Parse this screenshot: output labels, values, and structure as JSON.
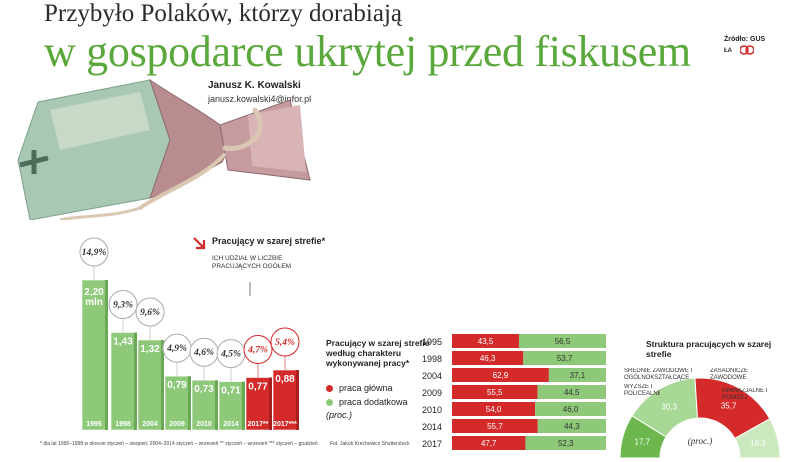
{
  "headline": {
    "line1": "Przybyło Polaków, którzy dorabiają",
    "line2": "w gospodarce ukrytej przed fiskusem"
  },
  "source": "Źródło: GUS",
  "credit": "ŁA",
  "author": {
    "name": "Janusz K. Kowalski",
    "email": "janusz.kowalski4@infor.pl"
  },
  "colors": {
    "green": "#8ec97a",
    "green_dark": "#5aa83c",
    "red": "#d42a2a",
    "gray": "#e6e6e6"
  },
  "chart_data": [
    {
      "type": "bar",
      "title": "Pracujący w szarej strefie*",
      "annotation": "ICH UDZIAŁ W LICZBIE PRACUJĄCYCH OGÓŁEM",
      "categories": [
        "1995",
        "1998",
        "2004",
        "2009",
        "2010",
        "2014",
        "2017**",
        "2017***"
      ],
      "values": [
        2.2,
        1.43,
        1.32,
        0.79,
        0.73,
        0.71,
        0.77,
        0.88
      ],
      "value_labels": [
        "2,20 mln",
        "1,43",
        "1,32",
        "0,79",
        "0,73",
        "0,71",
        "0,77",
        "0,88"
      ],
      "share_labels": [
        "14,9%",
        "9,3%",
        "9,6%",
        "4,9%",
        "4,6%",
        "4,5%",
        "4,7%",
        "5,4%"
      ],
      "highlight": [
        false,
        false,
        false,
        false,
        false,
        false,
        true,
        true
      ],
      "ylim": [
        0,
        2.4
      ]
    },
    {
      "type": "bar",
      "stacked": true,
      "orientation": "horizontal",
      "title": "Pracujący w szarej strefie według charakteru wykonywanej pracy*",
      "unit": "(proc.)",
      "categories": [
        "1995",
        "1998",
        "2004",
        "2009",
        "2010",
        "2014",
        "2017"
      ],
      "series": [
        {
          "name": "praca główna",
          "color": "#d42a2a",
          "values": [
            "43,5",
            "46,3",
            "62,9",
            "55,5",
            "54,0",
            "55,7",
            "47,7"
          ]
        },
        {
          "name": "praca dodatkowa",
          "color": "#8ec97a",
          "values": [
            "56,5",
            "53,7",
            "37,1",
            "44,5",
            "46,0",
            "44,3",
            "52,3"
          ]
        }
      ]
    },
    {
      "type": "pie",
      "title": "Struktura pracujących w szarej strefie",
      "unit": "(proc.)",
      "slices": [
        {
          "label": "WYŻSZE I POLICEALNE",
          "value": "17,7",
          "color": "#6cb84e"
        },
        {
          "label": "ŚREDNIE ZAWODOWE I OGÓLNOKSZTAŁCĄCE",
          "value": "30,3",
          "color": "#a8d896"
        },
        {
          "label": "ZASADNICZE ZAWODOWE",
          "value": "35,7",
          "color": "#d42a2a"
        },
        {
          "label": "GIMNAZJALNE I PONIŻEJ",
          "value": "16,3",
          "color": "#cbe8bf"
        }
      ]
    }
  ],
  "footnotes": {
    "main": "* dla lat 1995–1998 w okresie styczeń – sierpień, 2004–2014 styczeń – wrzesień     ** styczeń – wrzesień     *** styczeń – grudzień",
    "photo": "Fot. Jakub Krechowicz Shutterstock"
  }
}
